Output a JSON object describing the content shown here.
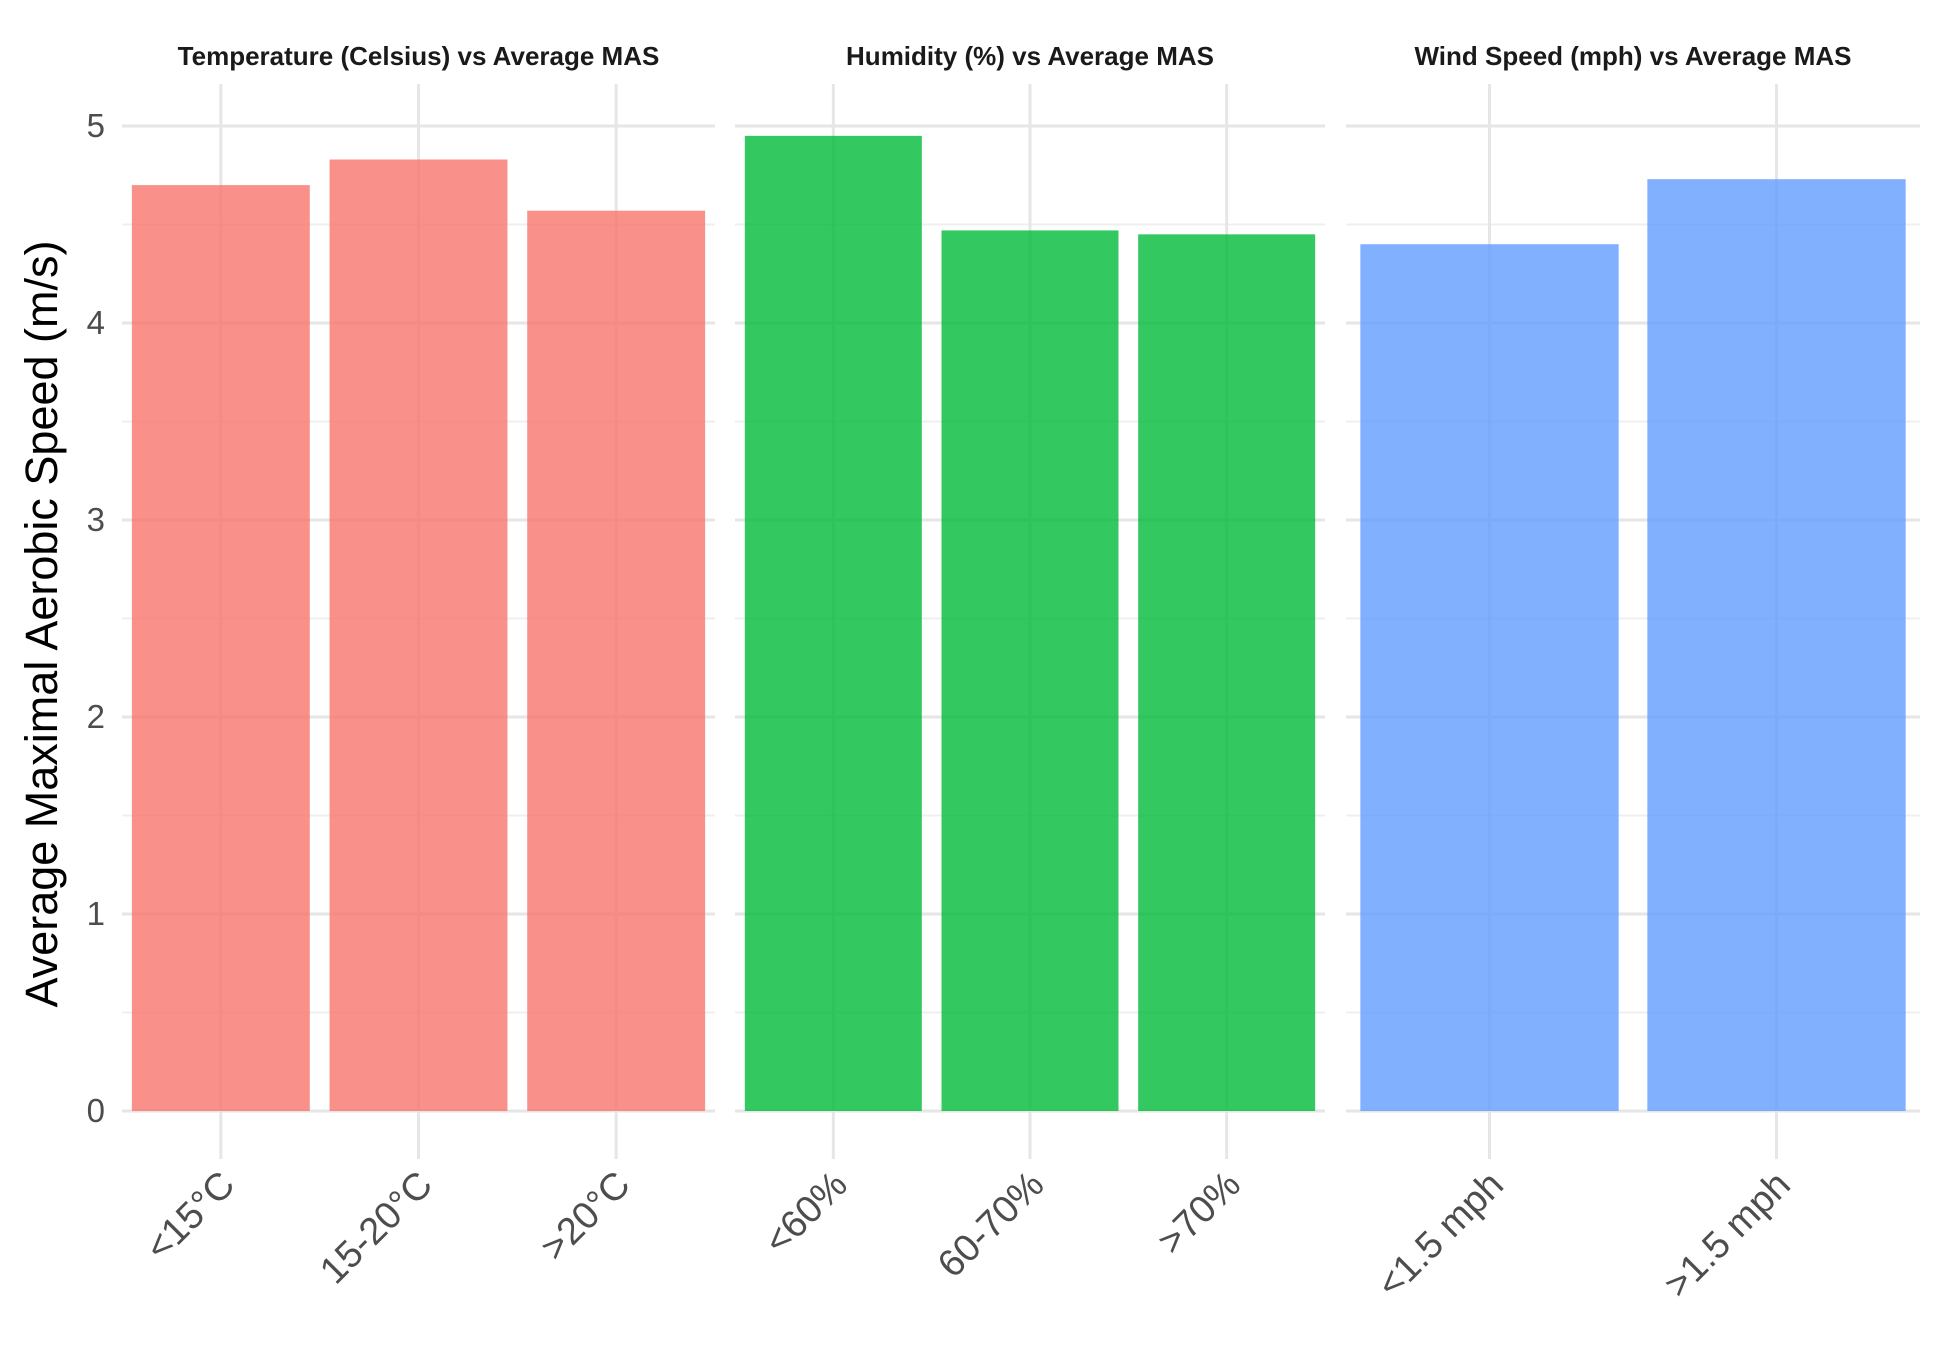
{
  "chart_data": {
    "type": "bar",
    "ylabel": "Average Maximal Aerobic Speed (m/s)",
    "ylim": [
      0,
      5.2
    ],
    "yticks": [
      0,
      1,
      2,
      3,
      4,
      5
    ],
    "yticks_labels": [
      "0",
      "1",
      "2",
      "3",
      "4",
      "5"
    ],
    "grid": true,
    "panels": [
      {
        "title": "Temperature (Celsius) vs Average MAS",
        "color": "#F8766D",
        "categories": [
          "<15°C",
          "15-20°C",
          ">20°C"
        ],
        "values": [
          4.7,
          4.83,
          4.57
        ]
      },
      {
        "title": "Humidity (%) vs Average MAS",
        "color": "#00BA38",
        "categories": [
          "<60%",
          "60-70%",
          ">70%"
        ],
        "values": [
          4.95,
          4.47,
          4.45
        ]
      },
      {
        "title": "Wind Speed (mph) vs Average MAS",
        "color": "#619CFF",
        "categories": [
          "<1.5 mph",
          ">1.5 mph"
        ],
        "values": [
          4.4,
          4.73
        ]
      }
    ]
  }
}
